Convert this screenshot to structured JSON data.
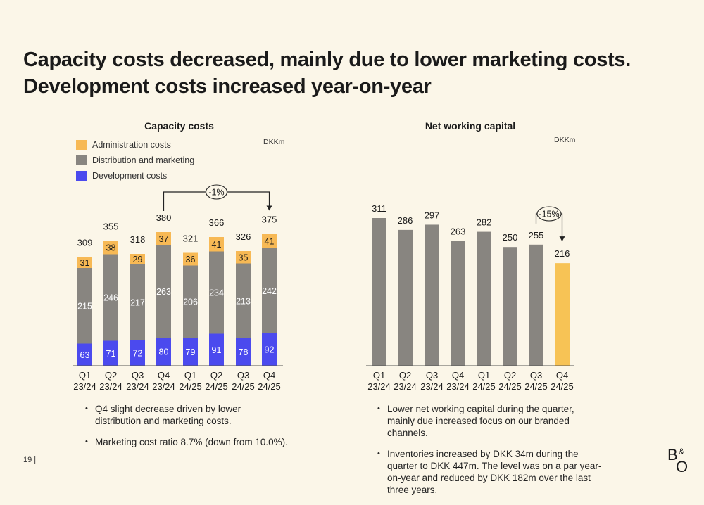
{
  "title": "Capacity costs decreased, mainly due to lower marketing costs. Development costs increased year-on-year",
  "page_number": "19 |",
  "logo": {
    "text": "B&O",
    "icon": "bang-olufsen-logo"
  },
  "colors": {
    "administration": "#f7b955",
    "distribution": "#888580",
    "development": "#4b4aee",
    "nwc_bar": "#888580",
    "nwc_highlight": "#f7c355",
    "background": "#fbf6e8"
  },
  "chart_data": [
    {
      "type": "bar",
      "stacked": true,
      "title": "Capacity costs",
      "unit": "DKKm",
      "categories": [
        "Q1\n23/24",
        "Q2\n23/24",
        "Q3\n23/24",
        "Q4\n23/24",
        "Q1\n24/25",
        "Q2\n24/25",
        "Q3\n24/25",
        "Q4\n24/25"
      ],
      "category_lines": [
        [
          "Q1",
          "23/24"
        ],
        [
          "Q2",
          "23/24"
        ],
        [
          "Q3",
          "23/24"
        ],
        [
          "Q4",
          "23/24"
        ],
        [
          "Q1",
          "24/25"
        ],
        [
          "Q2",
          "24/25"
        ],
        [
          "Q3",
          "24/25"
        ],
        [
          "Q4",
          "24/25"
        ]
      ],
      "series": [
        {
          "name": "Development costs",
          "values": [
            63,
            71,
            72,
            80,
            79,
            91,
            78,
            92
          ]
        },
        {
          "name": "Distribution and marketing",
          "values": [
            215,
            246,
            217,
            263,
            206,
            234,
            213,
            242
          ]
        },
        {
          "name": "Administration costs",
          "values": [
            31,
            38,
            29,
            37,
            36,
            41,
            35,
            41
          ]
        }
      ],
      "legend_order": [
        "Administration costs",
        "Distribution and marketing",
        "Development costs"
      ],
      "totals": [
        309,
        355,
        318,
        380,
        321,
        366,
        326,
        375
      ],
      "annotation": {
        "label": "-1%",
        "from_index": 3,
        "to_index": 7
      },
      "legend_position": "top-left",
      "grid": false
    },
    {
      "type": "bar",
      "title": "Net working capital",
      "unit": "DKKm",
      "categories": [
        "Q1\n23/24",
        "Q2\n23/24",
        "Q3\n23/24",
        "Q4\n23/24",
        "Q1\n24/25",
        "Q2\n24/25",
        "Q3\n24/25",
        "Q4\n24/25"
      ],
      "category_lines": [
        [
          "Q1",
          "23/24"
        ],
        [
          "Q2",
          "23/24"
        ],
        [
          "Q3",
          "23/24"
        ],
        [
          "Q4",
          "23/24"
        ],
        [
          "Q1",
          "24/25"
        ],
        [
          "Q2",
          "24/25"
        ],
        [
          "Q3",
          "24/25"
        ],
        [
          "Q4",
          "24/25"
        ]
      ],
      "values": [
        311,
        286,
        297,
        263,
        282,
        250,
        255,
        216
      ],
      "highlight_index": 7,
      "annotation": {
        "label": "-15%",
        "from_index": 6,
        "to_index": 7
      },
      "grid": false
    }
  ],
  "bullets_left": [
    "Q4 slight decrease driven by lower distribution and marketing costs.",
    "Marketing cost ratio 8.7% (down from 10.0%)."
  ],
  "bullets_right": [
    "Lower net working capital during the quarter, mainly due increased focus on our branded channels.",
    "Inventories increased by DKK 34m during the quarter to DKK 447m. The level was on a par year-on-year and reduced by DKK 182m over the last three years."
  ]
}
